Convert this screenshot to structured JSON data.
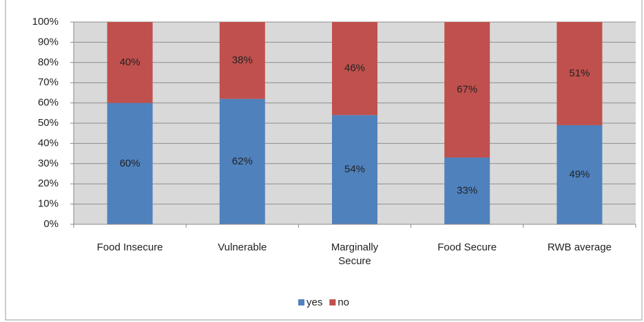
{
  "chart_data": {
    "type": "stacked_bar_percent",
    "categories": [
      "Food Insecure",
      "Vulnerable",
      "Marginally Secure",
      "Food Secure",
      "RWB average"
    ],
    "series": [
      {
        "name": "yes",
        "color": "#4f81bd",
        "values": [
          60,
          62,
          54,
          33,
          49
        ],
        "value_labels": [
          "60%",
          "62%",
          "54%",
          "33%",
          "49%"
        ]
      },
      {
        "name": "no",
        "color": "#c0504d",
        "values": [
          40,
          38,
          46,
          67,
          51
        ],
        "value_labels": [
          "40%",
          "38%",
          "46%",
          "67%",
          "51%"
        ]
      }
    ],
    "ylim": [
      0,
      100
    ],
    "yticks": [
      {
        "value": 0,
        "label": "0%"
      },
      {
        "value": 10,
        "label": "10%"
      },
      {
        "value": 20,
        "label": "20%"
      },
      {
        "value": 30,
        "label": "30%"
      },
      {
        "value": 40,
        "label": "40%"
      },
      {
        "value": 50,
        "label": "50%"
      },
      {
        "value": 60,
        "label": "60%"
      },
      {
        "value": 70,
        "label": "70%"
      },
      {
        "value": 80,
        "label": "80%"
      },
      {
        "value": 90,
        "label": "90%"
      },
      {
        "value": 100,
        "label": "100%"
      }
    ],
    "grid": true,
    "legend": "bottom"
  }
}
